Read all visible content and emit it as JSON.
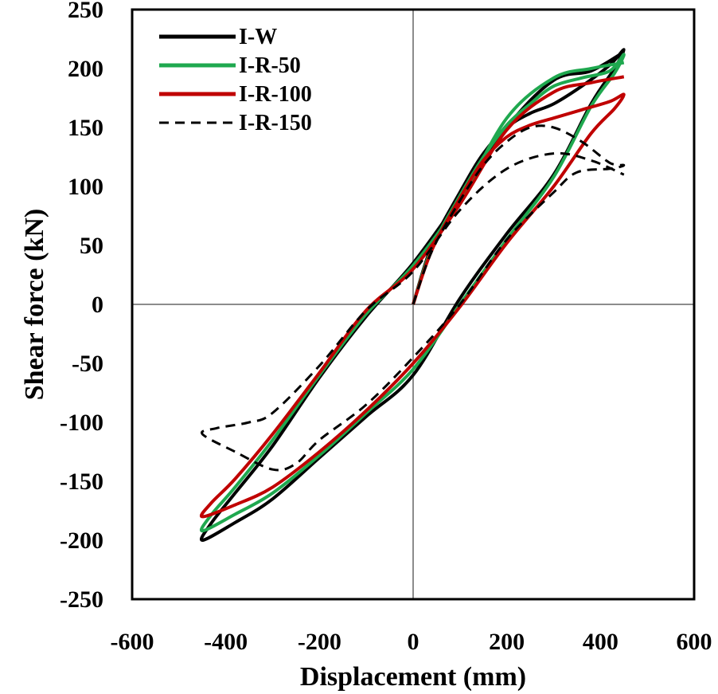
{
  "chart_data": {
    "type": "line",
    "xlabel": "Displacement (mm)",
    "ylabel": "Shear force (kN)",
    "xlim": [
      -600,
      600
    ],
    "ylim": [
      -250,
      250
    ],
    "xticks": [
      "-600",
      "-400",
      "-200",
      "0",
      "200",
      "400",
      "600"
    ],
    "yticks": [
      "250",
      "200",
      "150",
      "100",
      "50",
      "0",
      "-50",
      "-100",
      "-150",
      "-200",
      "-250"
    ],
    "grid": false,
    "zero_lines": true,
    "legend_position": "top-left",
    "series": [
      {
        "name": "I-W",
        "color": "#000000",
        "dash": "solid",
        "points": [
          [
            0,
            0
          ],
          [
            40,
            50
          ],
          [
            100,
            95
          ],
          [
            150,
            128
          ],
          [
            200,
            150
          ],
          [
            250,
            162
          ],
          [
            300,
            170
          ],
          [
            360,
            185
          ],
          [
            420,
            203
          ],
          [
            450,
            216
          ],
          [
            430,
            200
          ],
          [
            380,
            170
          ],
          [
            300,
            110
          ],
          [
            200,
            60
          ],
          [
            100,
            5
          ],
          [
            0,
            -60
          ],
          [
            -100,
            -95
          ],
          [
            -200,
            -130
          ],
          [
            -300,
            -165
          ],
          [
            -380,
            -185
          ],
          [
            -450,
            -200
          ],
          [
            -430,
            -185
          ],
          [
            -380,
            -160
          ],
          [
            -300,
            -120
          ],
          [
            -200,
            -62
          ],
          [
            -100,
            -10
          ],
          [
            0,
            35
          ],
          [
            100,
            90
          ],
          [
            200,
            150
          ],
          [
            300,
            190
          ],
          [
            380,
            198
          ],
          [
            450,
            214
          ]
        ]
      },
      {
        "name": "I-R-50",
        "color": "#1fa84f",
        "dash": "solid",
        "points": [
          [
            0,
            0
          ],
          [
            40,
            48
          ],
          [
            100,
            92
          ],
          [
            150,
            125
          ],
          [
            200,
            152
          ],
          [
            250,
            170
          ],
          [
            300,
            185
          ],
          [
            360,
            192
          ],
          [
            420,
            198
          ],
          [
            450,
            212
          ],
          [
            430,
            196
          ],
          [
            380,
            168
          ],
          [
            300,
            108
          ],
          [
            200,
            55
          ],
          [
            100,
            0
          ],
          [
            0,
            -55
          ],
          [
            -100,
            -92
          ],
          [
            -200,
            -128
          ],
          [
            -300,
            -160
          ],
          [
            -380,
            -178
          ],
          [
            -450,
            -192
          ],
          [
            -430,
            -178
          ],
          [
            -380,
            -155
          ],
          [
            -300,
            -115
          ],
          [
            -200,
            -60
          ],
          [
            -100,
            -8
          ],
          [
            0,
            33
          ],
          [
            100,
            88
          ],
          [
            200,
            158
          ],
          [
            300,
            192
          ],
          [
            380,
            200
          ],
          [
            450,
            205
          ]
        ]
      },
      {
        "name": "I-R-100",
        "color": "#c00000",
        "dash": "solid",
        "points": [
          [
            0,
            0
          ],
          [
            40,
            46
          ],
          [
            100,
            90
          ],
          [
            150,
            122
          ],
          [
            200,
            142
          ],
          [
            250,
            152
          ],
          [
            300,
            158
          ],
          [
            360,
            165
          ],
          [
            420,
            172
          ],
          [
            450,
            178
          ],
          [
            430,
            166
          ],
          [
            380,
            145
          ],
          [
            300,
            100
          ],
          [
            200,
            52
          ],
          [
            100,
            -2
          ],
          [
            0,
            -50
          ],
          [
            -100,
            -90
          ],
          [
            -200,
            -125
          ],
          [
            -300,
            -155
          ],
          [
            -380,
            -170
          ],
          [
            -450,
            -180
          ],
          [
            -430,
            -168
          ],
          [
            -380,
            -148
          ],
          [
            -300,
            -110
          ],
          [
            -200,
            -58
          ],
          [
            -100,
            -5
          ],
          [
            0,
            30
          ],
          [
            100,
            85
          ],
          [
            200,
            148
          ],
          [
            300,
            180
          ],
          [
            380,
            188
          ],
          [
            450,
            193
          ]
        ]
      },
      {
        "name": "I-R-150",
        "color": "#000000",
        "dash": "dashed",
        "points": [
          [
            0,
            0
          ],
          [
            40,
            45
          ],
          [
            100,
            88
          ],
          [
            150,
            118
          ],
          [
            200,
            138
          ],
          [
            250,
            150
          ],
          [
            300,
            150
          ],
          [
            360,
            138
          ],
          [
            420,
            120
          ],
          [
            450,
            118
          ],
          [
            420,
            115
          ],
          [
            350,
            112
          ],
          [
            300,
            95
          ],
          [
            200,
            55
          ],
          [
            100,
            0
          ],
          [
            0,
            -45
          ],
          [
            -100,
            -85
          ],
          [
            -200,
            -115
          ],
          [
            -250,
            -135
          ],
          [
            -300,
            -140
          ],
          [
            -380,
            -125
          ],
          [
            -450,
            -110
          ],
          [
            -420,
            -105
          ],
          [
            -350,
            -100
          ],
          [
            -300,
            -92
          ],
          [
            -200,
            -52
          ],
          [
            -100,
            -5
          ],
          [
            0,
            28
          ],
          [
            100,
            80
          ],
          [
            200,
            115
          ],
          [
            300,
            128
          ],
          [
            380,
            122
          ],
          [
            450,
            110
          ]
        ]
      }
    ]
  }
}
